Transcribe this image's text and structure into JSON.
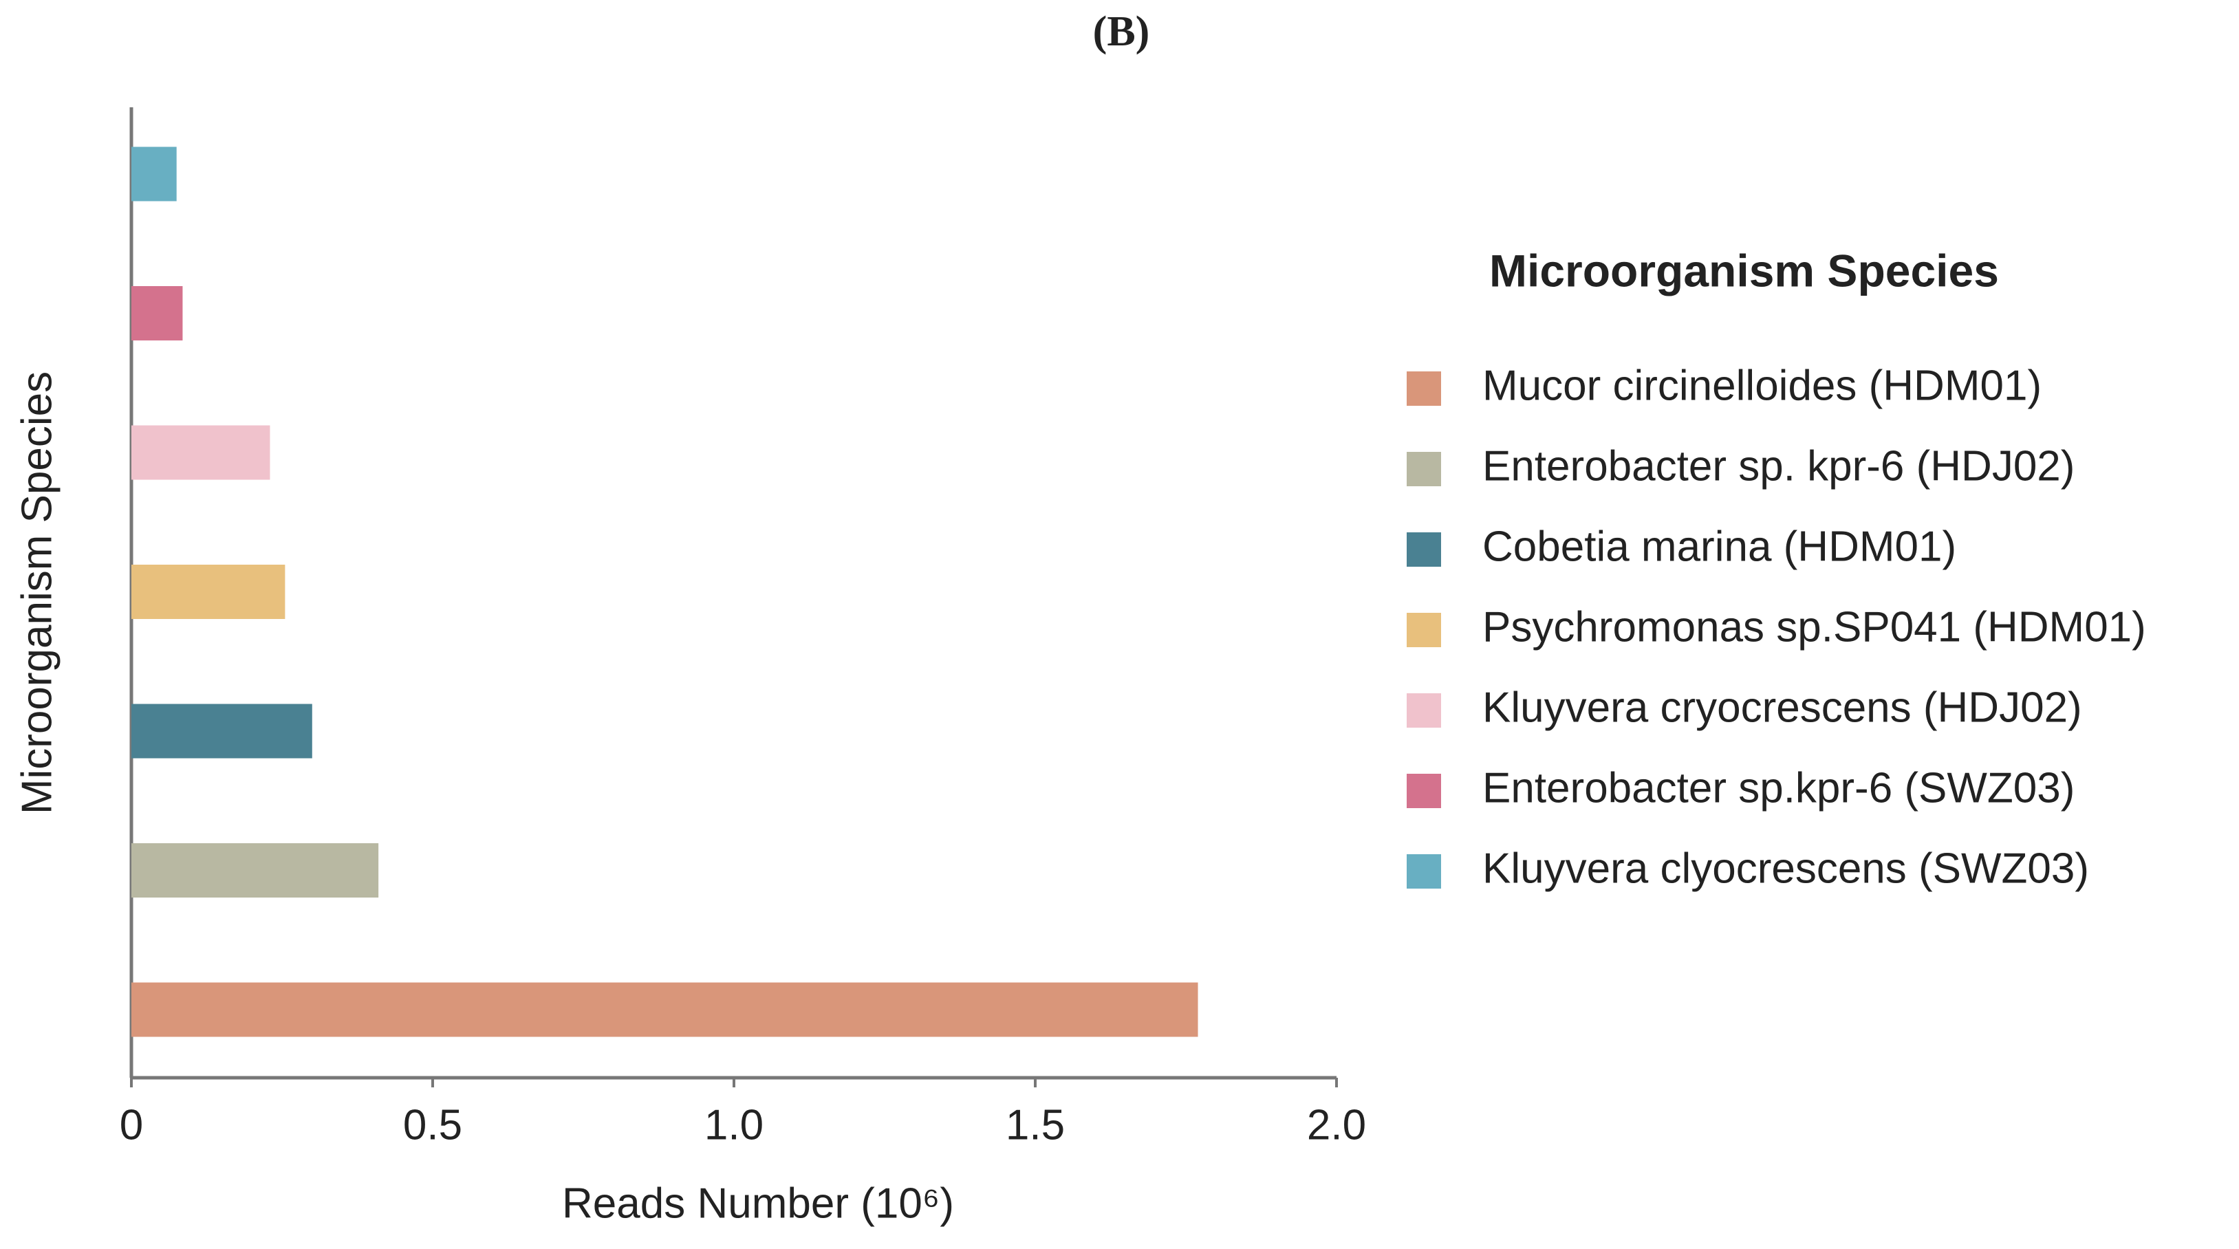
{
  "chart_data": {
    "type": "bar",
    "orientation": "horizontal",
    "panel_label": "(B)",
    "x_label": "Reads Number (10⁶)",
    "y_label": "Microorganism Species",
    "categories": [
      null,
      null,
      null,
      null,
      null,
      null,
      null
    ],
    "values": [
      1.77,
      0.41,
      0.3,
      0.255,
      0.23,
      0.085,
      0.075
    ],
    "colors": [
      "#d9967a",
      "#b8b8a2",
      "#4a8192",
      "#e8c07d",
      "#f0c2cc",
      "#d4728d",
      "#68afc2"
    ],
    "legend_title": "Microorganism Species",
    "legend_labels": [
      "Mucor circinelloides (HDM01)",
      "Enterobacter sp. kpr-6 (HDJ02)",
      "Cobetia marina (HDM01)",
      "Psychromonas sp.SP041 (HDM01)",
      "Kluyvera cryocrescens (HDJ02)",
      "Enterobacter sp.kpr-6 (SWZ03)",
      "Kluyvera clyocrescens (SWZ03)"
    ],
    "legend_position": "right",
    "xlim": [
      0,
      2
    ],
    "xticks": [
      0,
      0.5,
      {
        "value": 1,
        "label": "1.0"
      },
      1.5,
      {
        "value": 2,
        "label": "2.0"
      }
    ],
    "grid": false
  }
}
